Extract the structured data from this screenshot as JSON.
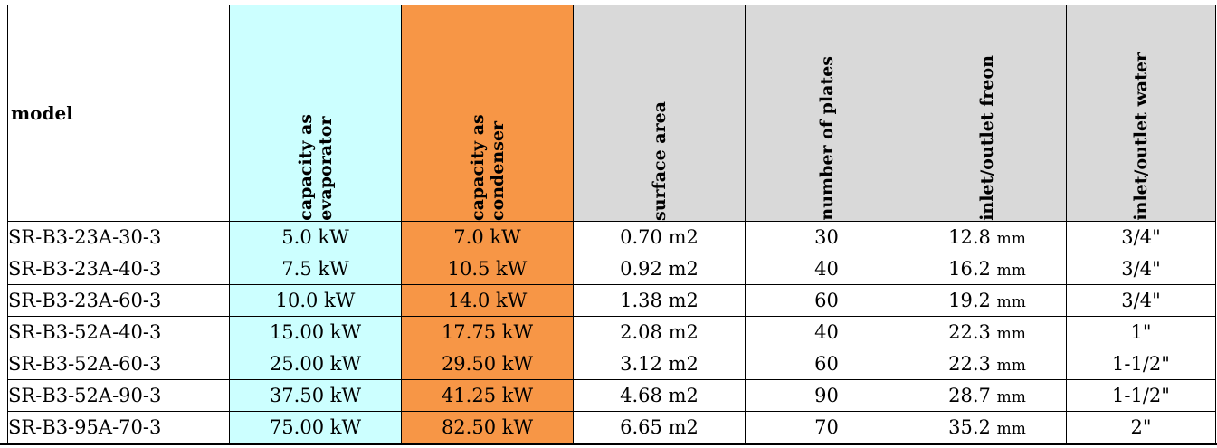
{
  "table": {
    "headers": {
      "model": "model",
      "evaporator": "capacity as\nevaporator",
      "condenser": "capacity as condenser",
      "surface": "surface area",
      "plates": "number of plates",
      "freon": "inlet/outlet freon",
      "water": "inlet/outlet water"
    },
    "rows": [
      {
        "model": "SR-B3-23A-30-3",
        "evap": "5.0 kW",
        "cond": "7.0 kW",
        "surface": "0.70 m2",
        "plates": "30",
        "freon": "12.8",
        "freon_unit": "mm",
        "water": "3/4\""
      },
      {
        "model": "SR-B3-23A-40-3",
        "evap": "7.5 kW",
        "cond": "10.5 kW",
        "surface": "0.92 m2",
        "plates": "40",
        "freon": "16.2",
        "freon_unit": "mm",
        "water": "3/4\""
      },
      {
        "model": "SR-B3-23A-60-3",
        "evap": "10.0 kW",
        "cond": "14.0 kW",
        "surface": "1.38 m2",
        "plates": "60",
        "freon": "19.2",
        "freon_unit": "mm",
        "water": "3/4\""
      },
      {
        "model": "SR-B3-52A-40-3",
        "evap": "15.00 kW",
        "cond": "17.75 kW",
        "surface": "2.08 m2",
        "plates": "40",
        "freon": "22.3",
        "freon_unit": "mm",
        "water": "1\""
      },
      {
        "model": "SR-B3-52A-60-3",
        "evap": "25.00 kW",
        "cond": "29.50 kW",
        "surface": "3.12 m2",
        "plates": "60",
        "freon": "22.3",
        "freon_unit": "mm",
        "water": "1-1/2\""
      },
      {
        "model": "SR-B3-52A-90-3",
        "evap": "37.50 kW",
        "cond": "41.25 kW",
        "surface": "4.68 m2",
        "plates": "90",
        "freon": "28.7",
        "freon_unit": "mm",
        "water": "1-1/2\""
      },
      {
        "model": "SR-B3-95A-70-3",
        "evap": "75.00 kW",
        "cond": "82.50 kW",
        "surface": "6.65 m2",
        "plates": "70",
        "freon": "35.2",
        "freon_unit": "mm",
        "water": "2\""
      }
    ]
  },
  "colors": {
    "evaporator_fill": "#ccffff",
    "condenser_fill": "#f79646",
    "header_fill": "#d9d9d9"
  }
}
